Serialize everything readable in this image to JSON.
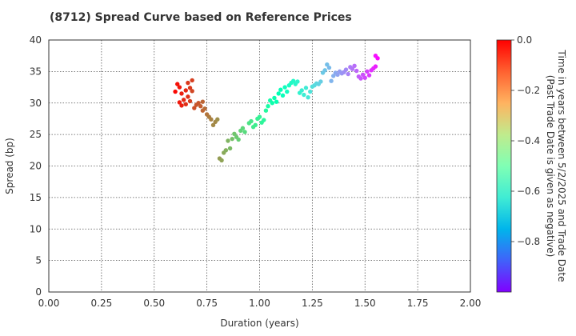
{
  "chart_data": {
    "type": "scatter",
    "title": "(8712)   Spread Curve based on Reference Prices",
    "xlabel": "Duration (years)",
    "ylabel": "Spread (bp)",
    "xlim": [
      0,
      2
    ],
    "ylim": [
      0,
      40
    ],
    "xticks": [
      "0.00",
      "0.25",
      "0.50",
      "0.75",
      "1.00",
      "1.25",
      "1.50",
      "1.75",
      "2.00"
    ],
    "yticks": [
      "0",
      "5",
      "10",
      "15",
      "20",
      "25",
      "30",
      "35",
      "40"
    ],
    "grid": true,
    "colorbar": {
      "label_line1": "Time in years between 5/2/2025 and Trade Date",
      "label_line2": "(Past Trade Date is given as negative)",
      "range": [
        -1.0,
        0.0
      ],
      "ticks": [
        "0.0",
        "−0.2",
        "−0.4",
        "−0.6",
        "−0.8"
      ],
      "colormap": "rainbow"
    },
    "points": [
      [
        0.6,
        31.8,
        -0.01
      ],
      [
        0.61,
        33.0,
        -0.02
      ],
      [
        0.62,
        32.5,
        -0.03
      ],
      [
        0.62,
        30.1,
        -0.03
      ],
      [
        0.63,
        29.6,
        -0.04
      ],
      [
        0.63,
        31.5,
        -0.04
      ],
      [
        0.64,
        30.5,
        -0.05
      ],
      [
        0.65,
        32.0,
        -0.05
      ],
      [
        0.65,
        29.8,
        -0.06
      ],
      [
        0.66,
        31.0,
        -0.06
      ],
      [
        0.66,
        33.2,
        -0.07
      ],
      [
        0.67,
        32.4,
        -0.07
      ],
      [
        0.67,
        30.3,
        -0.08
      ],
      [
        0.68,
        33.6,
        -0.08
      ],
      [
        0.68,
        31.9,
        -0.09
      ],
      [
        0.69,
        29.2,
        -0.1
      ],
      [
        0.7,
        29.7,
        -0.11
      ],
      [
        0.71,
        30.0,
        -0.11
      ],
      [
        0.72,
        29.5,
        -0.12
      ],
      [
        0.73,
        28.8,
        -0.13
      ],
      [
        0.73,
        30.2,
        -0.13
      ],
      [
        0.74,
        29.1,
        -0.14
      ],
      [
        0.75,
        28.2,
        -0.15
      ],
      [
        0.76,
        27.8,
        -0.16
      ],
      [
        0.77,
        27.4,
        -0.17
      ],
      [
        0.78,
        26.5,
        -0.18
      ],
      [
        0.79,
        27.0,
        -0.18
      ],
      [
        0.8,
        27.4,
        -0.19
      ],
      [
        0.81,
        21.2,
        -0.21
      ],
      [
        0.82,
        20.9,
        -0.22
      ],
      [
        0.83,
        22.1,
        -0.23
      ],
      [
        0.84,
        22.5,
        -0.24
      ],
      [
        0.85,
        24.0,
        -0.25
      ],
      [
        0.86,
        22.8,
        -0.26
      ],
      [
        0.87,
        24.3,
        -0.27
      ],
      [
        0.88,
        25.1,
        -0.28
      ],
      [
        0.89,
        24.6,
        -0.29
      ],
      [
        0.9,
        24.2,
        -0.3
      ],
      [
        0.91,
        25.6,
        -0.31
      ],
      [
        0.92,
        26.0,
        -0.32
      ],
      [
        0.93,
        25.4,
        -0.33
      ],
      [
        0.95,
        26.8,
        -0.35
      ],
      [
        0.96,
        27.1,
        -0.36
      ],
      [
        0.97,
        26.2,
        -0.37
      ],
      [
        0.98,
        26.5,
        -0.38
      ],
      [
        0.99,
        27.5,
        -0.39
      ],
      [
        1.0,
        27.8,
        -0.4
      ],
      [
        1.01,
        26.9,
        -0.41
      ],
      [
        1.02,
        27.3,
        -0.42
      ],
      [
        1.03,
        28.8,
        -0.43
      ],
      [
        1.04,
        29.5,
        -0.45
      ],
      [
        1.05,
        30.4,
        -0.46
      ],
      [
        1.06,
        30.0,
        -0.47
      ],
      [
        1.07,
        30.8,
        -0.48
      ],
      [
        1.08,
        30.2,
        -0.49
      ],
      [
        1.09,
        31.5,
        -0.5
      ],
      [
        1.1,
        32.1,
        -0.51
      ],
      [
        1.11,
        31.2,
        -0.52
      ],
      [
        1.12,
        32.5,
        -0.53
      ],
      [
        1.13,
        31.8,
        -0.54
      ],
      [
        1.14,
        32.8,
        -0.55
      ],
      [
        1.15,
        33.2,
        -0.56
      ],
      [
        1.16,
        33.5,
        -0.57
      ],
      [
        1.17,
        33.0,
        -0.58
      ],
      [
        1.18,
        33.4,
        -0.59
      ],
      [
        1.19,
        31.6,
        -0.6
      ],
      [
        1.2,
        32.0,
        -0.61
      ],
      [
        1.21,
        31.3,
        -0.62
      ],
      [
        1.22,
        32.4,
        -0.63
      ],
      [
        1.23,
        30.9,
        -0.64
      ],
      [
        1.24,
        31.8,
        -0.65
      ],
      [
        1.25,
        32.6,
        -0.66
      ],
      [
        1.26,
        32.8,
        -0.67
      ],
      [
        1.27,
        33.1,
        -0.68
      ],
      [
        1.28,
        33.0,
        -0.69
      ],
      [
        1.29,
        33.4,
        -0.7
      ],
      [
        1.3,
        34.8,
        -0.71
      ],
      [
        1.31,
        35.2,
        -0.72
      ],
      [
        1.32,
        36.1,
        -0.73
      ],
      [
        1.33,
        35.6,
        -0.74
      ],
      [
        1.34,
        33.5,
        -0.75
      ],
      [
        1.35,
        34.3,
        -0.76
      ],
      [
        1.36,
        34.8,
        -0.77
      ],
      [
        1.37,
        34.5,
        -0.78
      ],
      [
        1.38,
        35.0,
        -0.79
      ],
      [
        1.39,
        34.7,
        -0.8
      ],
      [
        1.4,
        34.9,
        -0.81
      ],
      [
        1.41,
        35.3,
        -0.82
      ],
      [
        1.42,
        34.6,
        -0.83
      ],
      [
        1.43,
        35.7,
        -0.84
      ],
      [
        1.44,
        35.4,
        -0.85
      ],
      [
        1.45,
        35.9,
        -0.86
      ],
      [
        1.46,
        35.1,
        -0.87
      ],
      [
        1.47,
        34.2,
        -0.88
      ],
      [
        1.48,
        33.9,
        -0.89
      ],
      [
        1.49,
        34.5,
        -0.9
      ],
      [
        1.5,
        34.0,
        -0.91
      ],
      [
        1.51,
        35.0,
        -0.92
      ],
      [
        1.52,
        34.4,
        -0.93
      ],
      [
        1.53,
        35.2,
        -0.94
      ],
      [
        1.54,
        35.5,
        -0.95
      ],
      [
        1.55,
        35.8,
        -0.96
      ],
      [
        1.55,
        37.5,
        -0.98
      ],
      [
        1.56,
        37.1,
        -0.99
      ]
    ]
  }
}
